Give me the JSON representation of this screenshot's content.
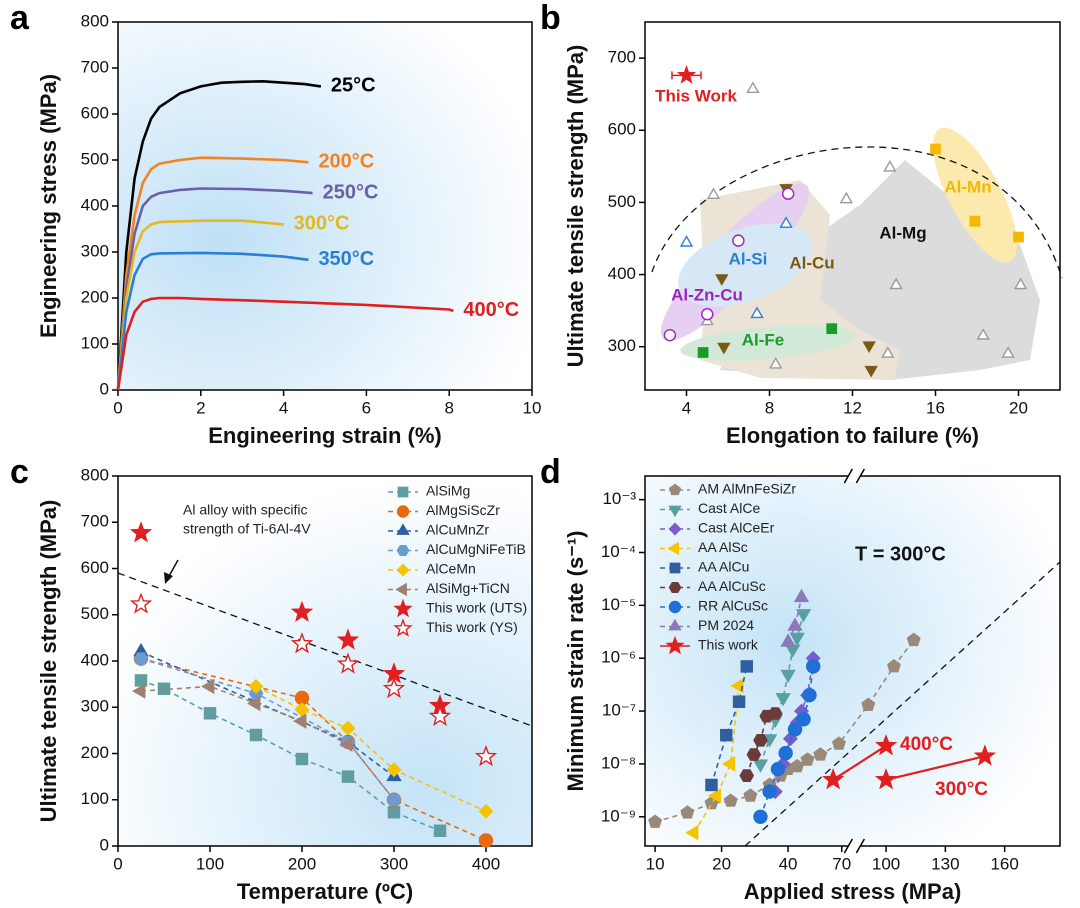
{
  "chart_data": [
    {
      "type": "line",
      "label": "a",
      "x_label": "Engineering strain (%)",
      "y_label": "Engineering stress (MPa)",
      "xlim": [
        0,
        10
      ],
      "ylim": [
        0,
        800
      ],
      "xticks": [
        0,
        2,
        4,
        6,
        8,
        10
      ],
      "yticks": [
        0,
        100,
        200,
        300,
        400,
        500,
        600,
        700,
        800
      ],
      "series": [
        {
          "name": "25°C",
          "color": "#000000",
          "x": [
            0,
            0.2,
            0.4,
            0.6,
            0.8,
            1.0,
            1.5,
            2,
            2.5,
            3,
            3.5,
            4,
            4.5,
            4.9
          ],
          "values": [
            0,
            300,
            460,
            540,
            590,
            615,
            645,
            660,
            668,
            670,
            671,
            668,
            665,
            660
          ]
        },
        {
          "name": "200°C",
          "color": "#f5821f",
          "x": [
            0,
            0.2,
            0.4,
            0.6,
            0.8,
            1,
            1.5,
            2,
            3,
            4,
            4.6
          ],
          "values": [
            0,
            250,
            380,
            450,
            480,
            492,
            500,
            505,
            503,
            500,
            495
          ]
        },
        {
          "name": "250°C",
          "color": "#6a5fa8",
          "x": [
            0,
            0.2,
            0.4,
            0.6,
            0.8,
            1,
            1.5,
            2,
            3,
            4,
            4.7
          ],
          "values": [
            0,
            220,
            340,
            400,
            420,
            428,
            435,
            438,
            437,
            433,
            428
          ]
        },
        {
          "name": "300°C",
          "color": "#e6b820",
          "x": [
            0,
            0.2,
            0.4,
            0.6,
            0.8,
            1,
            2,
            3,
            4
          ],
          "values": [
            0,
            200,
            300,
            345,
            360,
            365,
            368,
            368,
            360
          ]
        },
        {
          "name": "350°C",
          "color": "#2a7fd4",
          "x": [
            0,
            0.2,
            0.4,
            0.6,
            0.8,
            1,
            2,
            3,
            4,
            4.6
          ],
          "values": [
            0,
            170,
            250,
            285,
            295,
            297,
            298,
            296,
            290,
            283
          ]
        },
        {
          "name": "400°C",
          "color": "#e02020",
          "x": [
            0,
            0.2,
            0.4,
            0.6,
            0.8,
            1,
            1.5,
            2,
            4,
            6,
            8,
            8.1
          ],
          "values": [
            0,
            120,
            170,
            192,
            198,
            200,
            200,
            198,
            192,
            185,
            175,
            172
          ]
        }
      ]
    },
    {
      "type": "scatter",
      "label": "b",
      "x_label": "Elongation to failure (%)",
      "y_label": "Ultimate tensile strength (MPa)",
      "xlim": [
        2,
        22
      ],
      "ylim": [
        240,
        750
      ],
      "xticks": [
        4,
        8,
        12,
        16,
        20
      ],
      "yticks": [
        300,
        400,
        500,
        600,
        700
      ],
      "series": [
        {
          "name": "This Work",
          "color": "#e02020",
          "marker": "star",
          "x": [
            4
          ],
          "values": [
            676
          ],
          "x_errors": [
            0.7
          ]
        },
        {
          "name": "Al-Mg",
          "color": "#9a9a9a",
          "marker": "triangle",
          "open": true,
          "x": [
            7.2,
            11.7,
            13.8,
            14.1,
            18.3,
            19.5,
            20.1,
            5.3,
            8.3,
            13.7,
            5.0
          ],
          "values": [
            657,
            504,
            548,
            385,
            315,
            290,
            385,
            510,
            275,
            290,
            335
          ]
        },
        {
          "name": "Al-Mn",
          "color": "#f5b800",
          "marker": "square",
          "x": [
            16,
            17.9,
            20
          ],
          "values": [
            574,
            474,
            452
          ]
        },
        {
          "name": "Al-Si",
          "color": "#2a7fd4",
          "marker": "triangle",
          "open": true,
          "x": [
            4,
            7.4,
            8.8
          ],
          "values": [
            444,
            345,
            470
          ]
        },
        {
          "name": "Al-Cu",
          "color": "#7a5a10",
          "marker": "down",
          "x": [
            5.7,
            8.8,
            12.8,
            12.9,
            5.8
          ],
          "values": [
            395,
            520,
            302,
            268,
            300
          ]
        },
        {
          "name": "Al-Zn-Cu",
          "color": "#a020c0",
          "marker": "circle",
          "open": true,
          "x": [
            3.2,
            6.5,
            8.9,
            5.0
          ],
          "values": [
            316,
            447,
            512,
            345
          ]
        },
        {
          "name": "Al-Fe",
          "color": "#1a9a2a",
          "marker": "square",
          "x": [
            4.8,
            11.0
          ],
          "values": [
            292,
            325
          ]
        }
      ]
    },
    {
      "type": "line",
      "label": "c",
      "x_label": "Temperature (ºC)",
      "y_label": "Ultimate tensile strength (MPa)",
      "xlim": [
        0,
        450
      ],
      "ylim": [
        0,
        800
      ],
      "xticks": [
        0,
        100,
        200,
        300,
        400
      ],
      "yticks": [
        0,
        100,
        200,
        300,
        400,
        500,
        600,
        700,
        800
      ],
      "annotation": [
        "Al alloy with specific",
        "strength of Ti-6Al-4V"
      ],
      "series": [
        {
          "name": "AlSiMg",
          "color": "#5f9ea0",
          "marker": "square",
          "dash": true,
          "x": [
            25,
            50,
            100,
            150,
            200,
            250,
            300,
            350
          ],
          "values": [
            358,
            340,
            287,
            240,
            188,
            150,
            73,
            33
          ]
        },
        {
          "name": "AlMgSiScZr",
          "color": "#e86a10",
          "marker": "circle",
          "dash": true,
          "x": [
            25,
            200,
            250,
            300,
            400
          ],
          "values": [
            405,
            320,
            225,
            100,
            12
          ]
        },
        {
          "name": "AlCuMnZr",
          "color": "#2f5fa0",
          "marker": "triangle",
          "dash": true,
          "x": [
            25,
            250,
            300
          ],
          "values": [
            420,
            225,
            150
          ]
        },
        {
          "name": "AlCuMgNiFeTiB",
          "color": "#6b9bd2",
          "marker": "hexagon",
          "dash": true,
          "x": [
            25,
            150,
            250,
            300
          ],
          "values": [
            405,
            330,
            225,
            100
          ]
        },
        {
          "name": "AlCeMn",
          "color": "#f5c400",
          "marker": "diamond",
          "dash": true,
          "x": [
            150,
            200,
            250,
            300,
            400
          ],
          "values": [
            345,
            295,
            255,
            165,
            75
          ]
        },
        {
          "name": "AlSiMg+TiCN",
          "color": "#a08070",
          "marker": "left",
          "dash": true,
          "x": [
            25,
            100,
            150,
            200,
            250
          ],
          "values": [
            335,
            345,
            308,
            270,
            220
          ]
        },
        {
          "name": "This work (UTS)",
          "color": "#e02020",
          "marker": "star",
          "x": [
            25,
            200,
            250,
            300,
            350
          ],
          "values": [
            677,
            505,
            445,
            372,
            303
          ]
        },
        {
          "name": "This work (YS)",
          "color": "#e02020",
          "marker": "star",
          "open": true,
          "x": [
            25,
            200,
            250,
            300,
            350,
            400
          ],
          "values": [
            523,
            437,
            393,
            340,
            280,
            193
          ]
        }
      ]
    },
    {
      "type": "line",
      "label": "d",
      "x_label": "Applied stress (MPa)",
      "y_label": "Minimum strain rate (s⁻¹)",
      "xlim": [
        [
          9,
          75
        ],
        [
          87,
          188
        ]
      ],
      "xscale": [
        "log",
        "linear"
      ],
      "yscale": "log",
      "ylim": [
        2.8e-10,
        0.0028
      ],
      "xticks": [
        10,
        20,
        40,
        70,
        100,
        130,
        160
      ],
      "yticks": [
        {
          "value": 1e-09,
          "label": "10⁻⁹"
        },
        {
          "value": 1e-08,
          "label": "10⁻⁸"
        },
        {
          "value": 1e-07,
          "label": "10⁻⁷"
        },
        {
          "value": 1e-06,
          "label": "10⁻⁶"
        },
        {
          "value": 1e-05,
          "label": "10⁻⁵"
        },
        {
          "value": 0.0001,
          "label": "10⁻⁴"
        },
        {
          "value": 0.001,
          "label": "10⁻³"
        }
      ],
      "annotations": [
        "T = 300°C",
        "400°C",
        "300°C"
      ],
      "series": [
        {
          "name": "AM AlMnFeSiZr",
          "color": "#9a8878",
          "marker": "pentagon",
          "dash": true,
          "x": [
            10,
            14,
            18,
            22,
            27,
            33,
            37,
            40,
            44,
            49,
            56,
            68,
            91,
            104,
            114
          ],
          "values": [
            8e-10,
            1.2e-09,
            1.8e-09,
            2e-09,
            2.5e-09,
            4e-09,
            6e-09,
            8e-09,
            9e-09,
            1.2e-08,
            1.5e-08,
            2.4e-08,
            1.3e-07,
            7e-07,
            2.2e-06
          ]
        },
        {
          "name": "Cast AlCe",
          "color": "#5aa0a0",
          "marker": "down",
          "dash": true,
          "x": [
            30,
            33,
            35,
            38,
            40,
            42,
            44,
            47
          ],
          "values": [
            1e-08,
            3e-08,
            7e-08,
            1.8e-07,
            5e-07,
            1.5e-06,
            2.5e-06,
            7e-06
          ]
        },
        {
          "name": "Cast AlCeEr",
          "color": "#7a5bd0",
          "marker": "diamond",
          "dash": true,
          "x": [
            35,
            38,
            41,
            44,
            46,
            49,
            52
          ],
          "values": [
            3e-09,
            1e-08,
            3e-08,
            6e-08,
            1e-07,
            2e-07,
            1e-06
          ]
        },
        {
          "name": "AA AlSc",
          "color": "#f5c400",
          "marker": "left",
          "dash": true,
          "x": [
            15,
            19,
            22,
            24
          ],
          "values": [
            5e-10,
            2.5e-09,
            1e-08,
            3e-07
          ]
        },
        {
          "name": "AA AlCu",
          "color": "#2f5fa0",
          "marker": "square",
          "dash": true,
          "x": [
            18,
            21,
            24,
            26
          ],
          "values": [
            4e-09,
            3.5e-08,
            1.5e-07,
            7e-07
          ]
        },
        {
          "name": "AA AlCuSc",
          "color": "#6b3a3a",
          "marker": "hexagon",
          "dash": true,
          "x": [
            26,
            28,
            30,
            32,
            35
          ],
          "values": [
            6e-09,
            1.5e-08,
            2.8e-08,
            8e-08,
            9e-08
          ]
        },
        {
          "name": "RR AlCuSc",
          "color": "#1f6fd6",
          "marker": "circle",
          "dash": true,
          "x": [
            30,
            33,
            36,
            39,
            43,
            47,
            50,
            52
          ],
          "values": [
            1e-09,
            3e-09,
            8e-09,
            1.6e-08,
            4.5e-08,
            7e-08,
            2e-07,
            7e-07
          ]
        },
        {
          "name": "PM 2024",
          "color": "#8a7ab8",
          "marker": "triangle",
          "dash": true,
          "x": [
            40,
            43,
            46
          ],
          "values": [
            2e-06,
            4e-06,
            1.4e-05
          ]
        },
        {
          "name": "This work",
          "color": "#e02020",
          "marker": "star",
          "x": [
            64,
            100,
            null,
            100,
            150
          ],
          "values": [
            5e-09,
            2.2e-08,
            null,
            5e-09,
            1.4e-08
          ]
        }
      ]
    }
  ]
}
